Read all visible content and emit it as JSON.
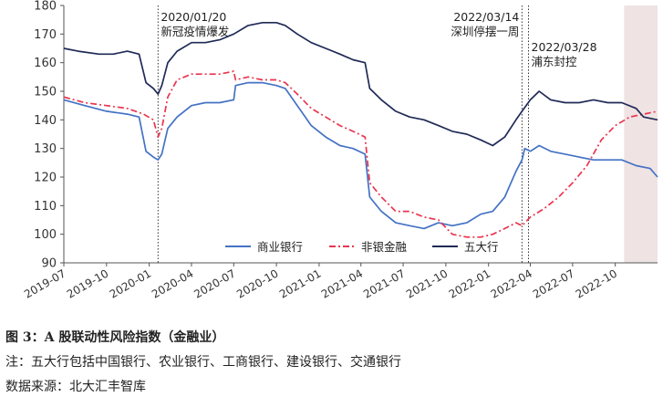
{
  "caption": {
    "title": "图 3：A 股联动性风险指数（金融业）",
    "note": "注：五大行包括中国银行、农业银行、工商银行、建设银行、交通银行",
    "source": "数据来源：北大汇丰智库"
  },
  "chart_data": {
    "type": "line",
    "ylim": [
      90,
      180
    ],
    "yticks": [
      90,
      100,
      110,
      120,
      130,
      140,
      150,
      160,
      170,
      180
    ],
    "xlim": [
      "2019-07-01",
      "2022-12-31"
    ],
    "xticks": [
      "2019-07",
      "2019-10",
      "2020-01",
      "2020-04",
      "2020-07",
      "2020-10",
      "2021-01",
      "2021-04",
      "2021-07",
      "2021-10",
      "2022-01",
      "2022-04",
      "2022-07",
      "2022-10"
    ],
    "grid": false,
    "legend": {
      "position": "bottom-center"
    },
    "shaded_region": {
      "start": "2022-10-20",
      "end": "2022-12-31",
      "color": "#efe3e3"
    },
    "annotations": [
      {
        "date": "2020-01-20",
        "line1": "2020/01/20",
        "line2": "新冠疫情爆发"
      },
      {
        "date": "2022-03-14",
        "line1": "2022/03/14",
        "line2": "深圳停摆一周"
      },
      {
        "date": "2022-03-28",
        "line1": "2022/03/28",
        "line2": "浦东封控"
      }
    ],
    "series": [
      {
        "name": "商业银行",
        "color": "#4472c4",
        "dash": "solid",
        "points": [
          [
            "2019-07-01",
            147
          ],
          [
            "2019-08-15",
            145
          ],
          [
            "2019-10-01",
            143
          ],
          [
            "2019-11-15",
            142
          ],
          [
            "2019-12-10",
            141
          ],
          [
            "2019-12-25",
            129
          ],
          [
            "2020-01-10",
            127
          ],
          [
            "2020-01-20",
            126
          ],
          [
            "2020-01-28",
            128
          ],
          [
            "2020-02-10",
            137
          ],
          [
            "2020-03-01",
            141
          ],
          [
            "2020-04-01",
            145
          ],
          [
            "2020-05-01",
            146
          ],
          [
            "2020-06-01",
            146
          ],
          [
            "2020-07-01",
            147
          ],
          [
            "2020-07-05",
            152
          ],
          [
            "2020-08-01",
            153
          ],
          [
            "2020-09-01",
            153
          ],
          [
            "2020-10-01",
            152
          ],
          [
            "2020-10-20",
            151
          ],
          [
            "2020-11-15",
            145
          ],
          [
            "2020-12-15",
            138
          ],
          [
            "2021-01-15",
            134
          ],
          [
            "2021-02-15",
            131
          ],
          [
            "2021-03-15",
            130
          ],
          [
            "2021-04-10",
            128
          ],
          [
            "2021-04-20",
            113
          ],
          [
            "2021-05-15",
            108
          ],
          [
            "2021-06-15",
            104
          ],
          [
            "2021-07-15",
            103
          ],
          [
            "2021-08-15",
            102
          ],
          [
            "2021-09-15",
            104
          ],
          [
            "2021-10-15",
            103
          ],
          [
            "2021-11-15",
            104
          ],
          [
            "2021-12-15",
            107
          ],
          [
            "2022-01-10",
            108
          ],
          [
            "2022-02-05",
            113
          ],
          [
            "2022-03-01",
            122
          ],
          [
            "2022-03-14",
            126
          ],
          [
            "2022-03-20",
            130
          ],
          [
            "2022-04-01",
            129
          ],
          [
            "2022-04-20",
            131
          ],
          [
            "2022-05-15",
            129
          ],
          [
            "2022-06-15",
            128
          ],
          [
            "2022-07-15",
            127
          ],
          [
            "2022-08-15",
            126
          ],
          [
            "2022-09-15",
            126
          ],
          [
            "2022-10-15",
            126
          ],
          [
            "2022-11-15",
            124
          ],
          [
            "2022-12-15",
            123
          ],
          [
            "2022-12-31",
            120
          ]
        ]
      },
      {
        "name": "非银金融",
        "color": "#e8364f",
        "dash": "dashdot",
        "points": [
          [
            "2019-07-01",
            148
          ],
          [
            "2019-08-15",
            146
          ],
          [
            "2019-10-01",
            145
          ],
          [
            "2019-11-15",
            144
          ],
          [
            "2019-12-20",
            142
          ],
          [
            "2020-01-10",
            140
          ],
          [
            "2020-01-20",
            134
          ],
          [
            "2020-01-28",
            137
          ],
          [
            "2020-02-10",
            148
          ],
          [
            "2020-03-01",
            154
          ],
          [
            "2020-04-01",
            156
          ],
          [
            "2020-05-01",
            156
          ],
          [
            "2020-06-01",
            156
          ],
          [
            "2020-07-01",
            157
          ],
          [
            "2020-07-05",
            154
          ],
          [
            "2020-08-01",
            155
          ],
          [
            "2020-09-01",
            154
          ],
          [
            "2020-10-01",
            154
          ],
          [
            "2020-10-20",
            153
          ],
          [
            "2020-11-15",
            149
          ],
          [
            "2020-12-15",
            144
          ],
          [
            "2021-01-15",
            141
          ],
          [
            "2021-02-15",
            138
          ],
          [
            "2021-03-15",
            136
          ],
          [
            "2021-04-10",
            134
          ],
          [
            "2021-04-20",
            118
          ],
          [
            "2021-05-15",
            113
          ],
          [
            "2021-06-15",
            108
          ],
          [
            "2021-07-15",
            108
          ],
          [
            "2021-08-15",
            106
          ],
          [
            "2021-09-15",
            105
          ],
          [
            "2021-10-15",
            100
          ],
          [
            "2021-11-15",
            99
          ],
          [
            "2021-12-15",
            99
          ],
          [
            "2022-01-10",
            100
          ],
          [
            "2022-02-05",
            102
          ],
          [
            "2022-03-01",
            104
          ],
          [
            "2022-03-14",
            103
          ],
          [
            "2022-04-01",
            106
          ],
          [
            "2022-05-01",
            109
          ],
          [
            "2022-06-01",
            113
          ],
          [
            "2022-07-01",
            118
          ],
          [
            "2022-08-01",
            124
          ],
          [
            "2022-09-01",
            133
          ],
          [
            "2022-10-01",
            138
          ],
          [
            "2022-11-01",
            141
          ],
          [
            "2022-12-01",
            142
          ],
          [
            "2022-12-31",
            143
          ]
        ]
      },
      {
        "name": "五大行",
        "color": "#1f2a56",
        "dash": "solid",
        "points": [
          [
            "2019-07-01",
            165
          ],
          [
            "2019-08-01",
            164
          ],
          [
            "2019-09-15",
            163
          ],
          [
            "2019-10-15",
            163
          ],
          [
            "2019-11-15",
            164
          ],
          [
            "2019-12-10",
            163
          ],
          [
            "2019-12-25",
            153
          ],
          [
            "2020-01-10",
            151
          ],
          [
            "2020-01-20",
            149
          ],
          [
            "2020-01-28",
            152
          ],
          [
            "2020-02-10",
            160
          ],
          [
            "2020-03-01",
            164
          ],
          [
            "2020-04-01",
            167
          ],
          [
            "2020-05-01",
            167
          ],
          [
            "2020-06-01",
            168
          ],
          [
            "2020-07-01",
            170
          ],
          [
            "2020-08-01",
            173
          ],
          [
            "2020-09-01",
            174
          ],
          [
            "2020-10-01",
            174
          ],
          [
            "2020-10-20",
            173
          ],
          [
            "2020-11-15",
            170
          ],
          [
            "2020-12-15",
            167
          ],
          [
            "2021-01-15",
            165
          ],
          [
            "2021-02-15",
            163
          ],
          [
            "2021-03-15",
            161
          ],
          [
            "2021-04-10",
            160
          ],
          [
            "2021-04-20",
            151
          ],
          [
            "2021-05-15",
            147
          ],
          [
            "2021-06-15",
            143
          ],
          [
            "2021-07-15",
            141
          ],
          [
            "2021-08-15",
            140
          ],
          [
            "2021-09-15",
            138
          ],
          [
            "2021-10-15",
            136
          ],
          [
            "2021-11-15",
            135
          ],
          [
            "2021-12-15",
            133
          ],
          [
            "2022-01-10",
            131
          ],
          [
            "2022-02-05",
            134
          ],
          [
            "2022-03-01",
            140
          ],
          [
            "2022-03-14",
            143
          ],
          [
            "2022-04-01",
            147
          ],
          [
            "2022-04-20",
            150
          ],
          [
            "2022-05-15",
            147
          ],
          [
            "2022-06-15",
            146
          ],
          [
            "2022-07-15",
            146
          ],
          [
            "2022-08-15",
            147
          ],
          [
            "2022-09-15",
            146
          ],
          [
            "2022-10-15",
            146
          ],
          [
            "2022-11-15",
            144
          ],
          [
            "2022-12-01",
            141
          ],
          [
            "2022-12-31",
            140
          ]
        ]
      }
    ]
  }
}
